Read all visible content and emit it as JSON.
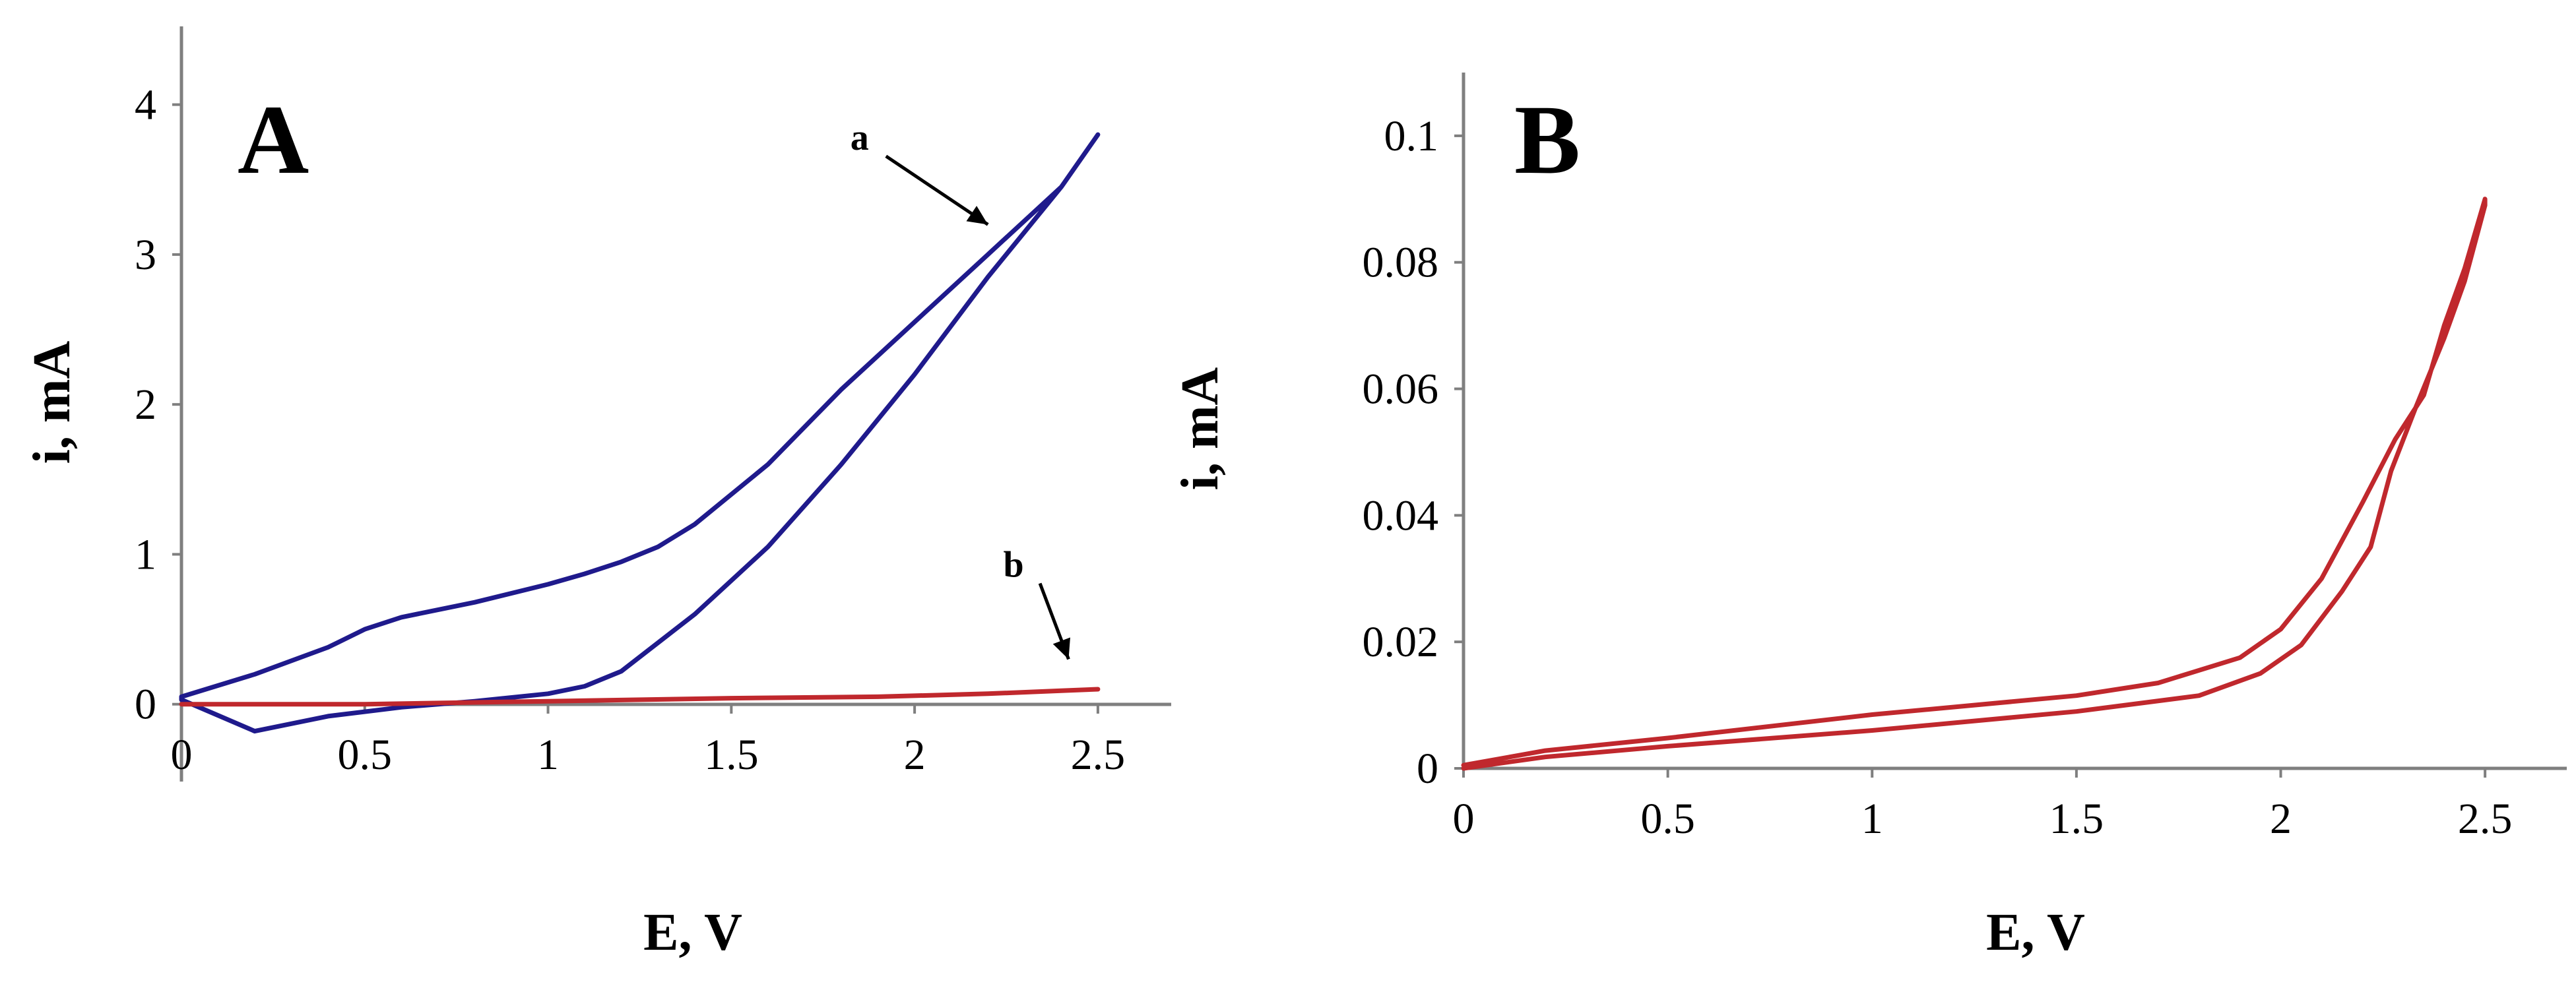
{
  "chart_data": [
    {
      "type": "line",
      "panel_label": "A",
      "xlabel": "E, V",
      "ylabel": "i, mA",
      "xlim": [
        0,
        2.7
      ],
      "ylim": [
        -0.45,
        4.5
      ],
      "xticks": [
        "0",
        "0.5",
        "1",
        "1.5",
        "2",
        "2.5"
      ],
      "yticks": [
        "0",
        "1",
        "2",
        "3",
        "4"
      ],
      "grid": false,
      "series": [
        {
          "name": "a",
          "color": "#1f1a8c",
          "x": [
            2.5,
            2.4,
            2.2,
            2.0,
            1.8,
            1.6,
            1.4,
            1.3,
            1.2,
            1.1,
            1.0,
            0.8,
            0.6,
            0.5,
            0.4,
            0.2,
            0.0,
            0.0,
            0.2,
            0.4,
            0.6,
            0.8,
            1.0,
            1.1,
            1.2,
            1.4,
            1.6,
            1.8,
            2.0,
            2.2,
            2.4,
            2.5
          ],
          "y": [
            3.8,
            3.45,
            3.0,
            2.55,
            2.1,
            1.6,
            1.2,
            1.05,
            0.95,
            0.87,
            0.8,
            0.68,
            0.58,
            0.5,
            0.38,
            0.2,
            0.05,
            0.03,
            -0.18,
            -0.08,
            -0.02,
            0.02,
            0.07,
            0.12,
            0.22,
            0.6,
            1.05,
            1.6,
            2.2,
            2.85,
            3.45,
            3.8
          ]
        },
        {
          "name": "b",
          "color": "#c0282d",
          "x": [
            0.0,
            0.5,
            1.0,
            1.5,
            1.9,
            2.2,
            2.4,
            2.5
          ],
          "y": [
            0.0,
            0.0,
            0.02,
            0.04,
            0.05,
            0.07,
            0.09,
            0.1
          ]
        }
      ],
      "annotations": [
        {
          "text": "a",
          "label_x": 1.85,
          "label_y": 3.7,
          "arrow_x": 2.2,
          "arrow_y": 3.2
        },
        {
          "text": "b",
          "label_x": 2.27,
          "label_y": 0.85,
          "arrow_x": 2.42,
          "arrow_y": 0.3
        }
      ]
    },
    {
      "type": "line",
      "panel_label": "B",
      "xlabel": "E, V",
      "ylabel": "i, mA",
      "xlim": [
        0,
        2.7
      ],
      "ylim": [
        0,
        0.11
      ],
      "xticks": [
        "0",
        "0.5",
        "1",
        "1.5",
        "2",
        "2.5"
      ],
      "yticks": [
        "0",
        "0.02",
        "0.04",
        "0.06",
        "0.08",
        "0.1"
      ],
      "grid": false,
      "series": [
        {
          "name": "",
          "color": "#c0282d",
          "x": [
            0.0,
            0.2,
            0.5,
            1.0,
            1.5,
            1.8,
            1.95,
            2.05,
            2.15,
            2.22,
            2.27,
            2.33,
            2.4,
            2.45,
            2.5,
            2.5,
            2.45,
            2.4,
            2.35,
            2.28,
            2.2,
            2.1,
            2.0,
            1.9,
            1.7,
            1.5,
            1.0,
            0.5,
            0.2,
            0.0
          ],
          "y": [
            0.0,
            0.0018,
            0.0035,
            0.006,
            0.009,
            0.0115,
            0.015,
            0.0195,
            0.028,
            0.035,
            0.047,
            0.057,
            0.068,
            0.077,
            0.089,
            0.09,
            0.079,
            0.07,
            0.059,
            0.052,
            0.042,
            0.03,
            0.022,
            0.0175,
            0.0135,
            0.0115,
            0.0085,
            0.0048,
            0.0028,
            0.0005
          ]
        }
      ]
    }
  ]
}
